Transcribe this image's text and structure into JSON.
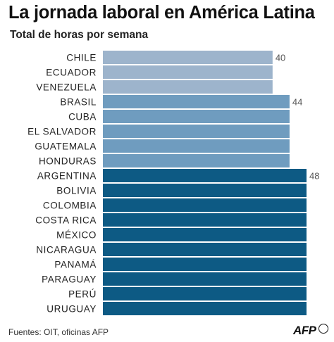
{
  "title": "La jornada laboral en América Latina",
  "subtitle": "Total de horas por semana",
  "source": "Fuentes: OIT, oficinas AFP",
  "logo": "AFP",
  "colors": {
    "group40": "#9db4cc",
    "group44": "#6f9cbf",
    "group48": "#0d5a84",
    "label": "#222222",
    "value": "#555555"
  },
  "chart_data": {
    "type": "bar",
    "orientation": "horizontal",
    "categories": [
      "CHILE",
      "ECUADOR",
      "VENEZUELA",
      "BRASIL",
      "CUBA",
      "EL SALVADOR",
      "GUATEMALA",
      "HONDURAS",
      "ARGENTINA",
      "BOLIVIA",
      "COLOMBIA",
      "COSTA RICA",
      "MÉXICO",
      "NICARAGUA",
      "PANAMÁ",
      "PARAGUAY",
      "PERÚ",
      "URUGUAY"
    ],
    "values": [
      40,
      40,
      40,
      44,
      44,
      44,
      44,
      44,
      48,
      48,
      48,
      48,
      48,
      48,
      48,
      48,
      48,
      48
    ],
    "value_labels": [
      "40",
      "",
      "",
      "44",
      "",
      "",
      "",
      "",
      "48",
      "",
      "",
      "",
      "",
      "",
      "",
      "",
      "",
      ""
    ],
    "xlim": [
      0,
      48
    ],
    "grid": false,
    "title": "La jornada laboral en América Latina",
    "subtitle": "Total de horas por semana"
  }
}
